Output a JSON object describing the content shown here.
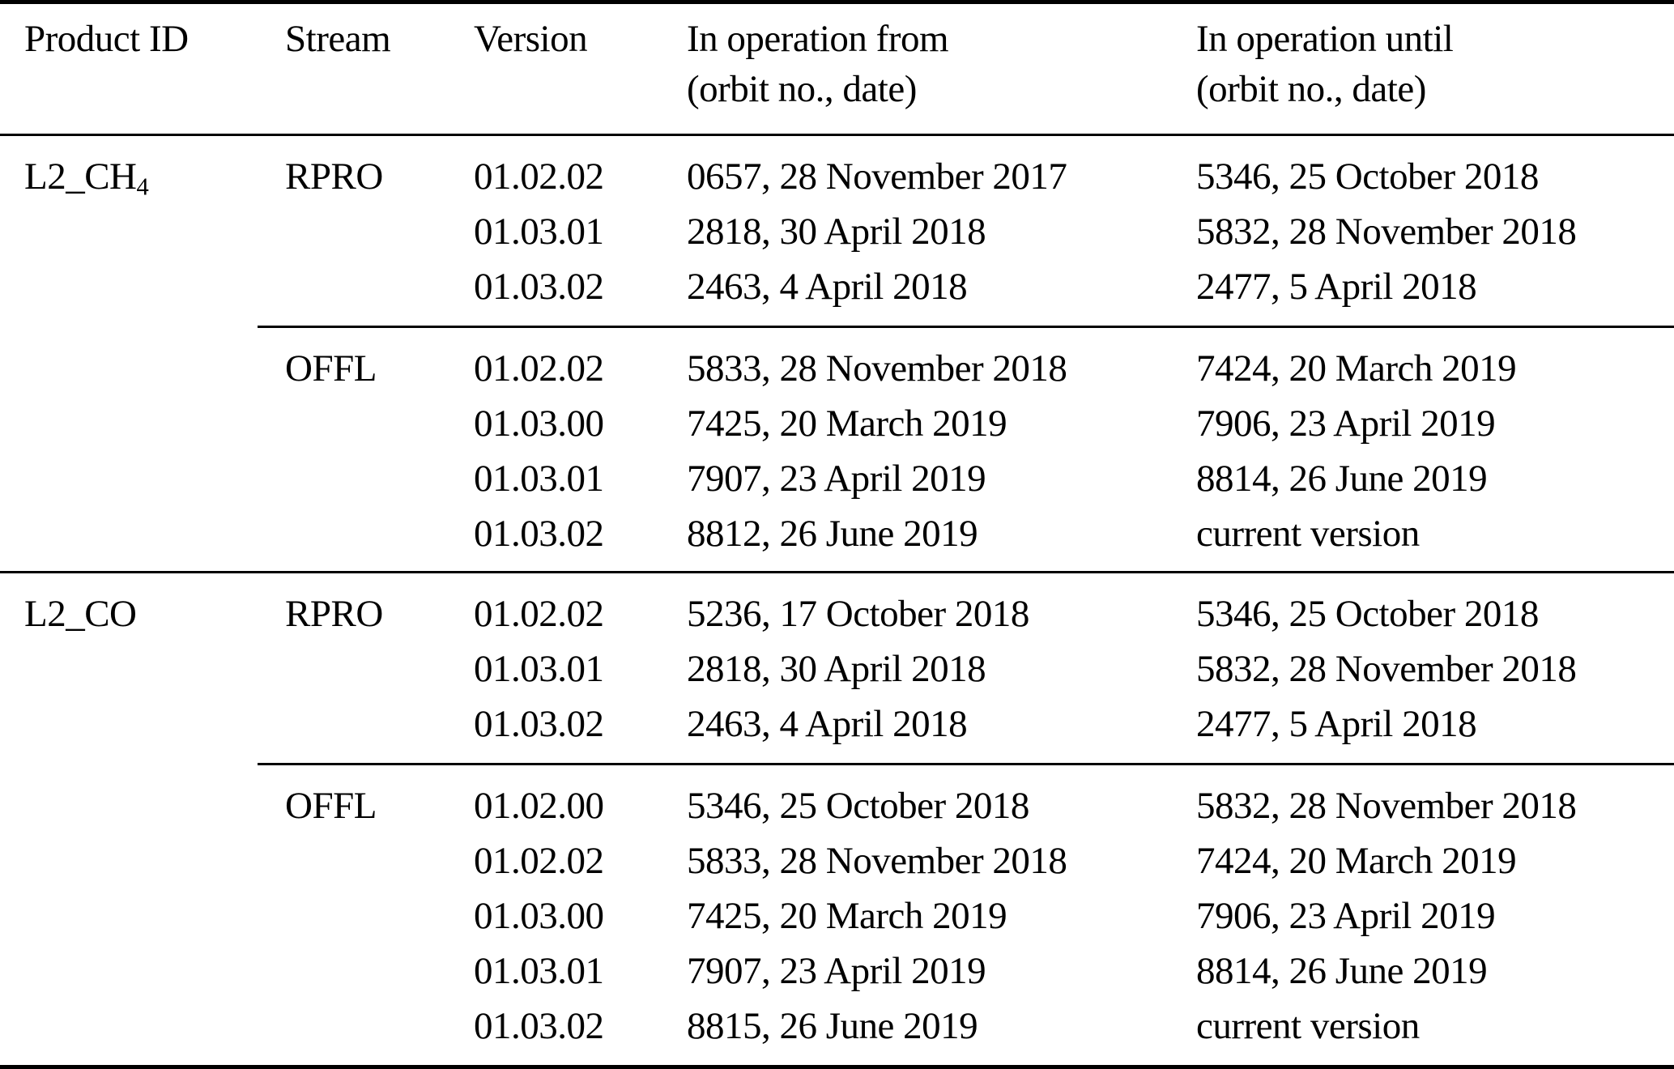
{
  "colors": {
    "text": "#000000",
    "background": "#ffffff",
    "rule": "#000000"
  },
  "table": {
    "headers": {
      "product_id": "Product ID",
      "stream": "Stream",
      "version": "Version",
      "from_line1": "In operation from",
      "from_line2": "(orbit no., date)",
      "until_line1": "In operation until",
      "until_line2": "(orbit no., date)"
    },
    "products": [
      {
        "label_main": "L2_CH",
        "label_sub": "4",
        "groups": [
          {
            "stream": "RPRO",
            "rows": [
              {
                "version": "01.02.02",
                "from": "0657, 28 November 2017",
                "until": "5346, 25 October 2018"
              },
              {
                "version": "01.03.01",
                "from": "2818, 30 April 2018",
                "until": "5832, 28 November 2018"
              },
              {
                "version": "01.03.02",
                "from": "2463, 4 April 2018",
                "until": "2477, 5 April 2018"
              }
            ]
          },
          {
            "stream": "OFFL",
            "rows": [
              {
                "version": "01.02.02",
                "from": "5833, 28 November 2018",
                "until": "7424, 20 March 2019"
              },
              {
                "version": "01.03.00",
                "from": "7425, 20 March 2019",
                "until": "7906, 23 April 2019"
              },
              {
                "version": "01.03.01",
                "from": "7907, 23 April 2019",
                "until": "8814, 26 June 2019"
              },
              {
                "version": "01.03.02",
                "from": "8812, 26 June 2019",
                "until": "current version"
              }
            ]
          }
        ]
      },
      {
        "label_main": "L2_CO",
        "label_sub": "",
        "groups": [
          {
            "stream": "RPRO",
            "rows": [
              {
                "version": "01.02.02",
                "from": "5236, 17 October 2018",
                "until": "5346, 25 October 2018"
              },
              {
                "version": "01.03.01",
                "from": "2818, 30 April 2018",
                "until": "5832, 28 November 2018"
              },
              {
                "version": "01.03.02",
                "from": "2463, 4 April 2018",
                "until": "2477, 5 April 2018"
              }
            ]
          },
          {
            "stream": "OFFL",
            "rows": [
              {
                "version": "01.02.00",
                "from": "5346, 25 October 2018",
                "until": "5832, 28 November 2018"
              },
              {
                "version": "01.02.02",
                "from": "5833, 28 November 2018",
                "until": "7424, 20 March 2019"
              },
              {
                "version": "01.03.00",
                "from": "7425, 20 March 2019",
                "until": "7906, 23 April 2019"
              },
              {
                "version": "01.03.01",
                "from": "7907, 23 April 2019",
                "until": "8814, 26 June 2019"
              },
              {
                "version": "01.03.02",
                "from": "8815, 26 June 2019",
                "until": "current version"
              }
            ]
          }
        ]
      }
    ]
  }
}
